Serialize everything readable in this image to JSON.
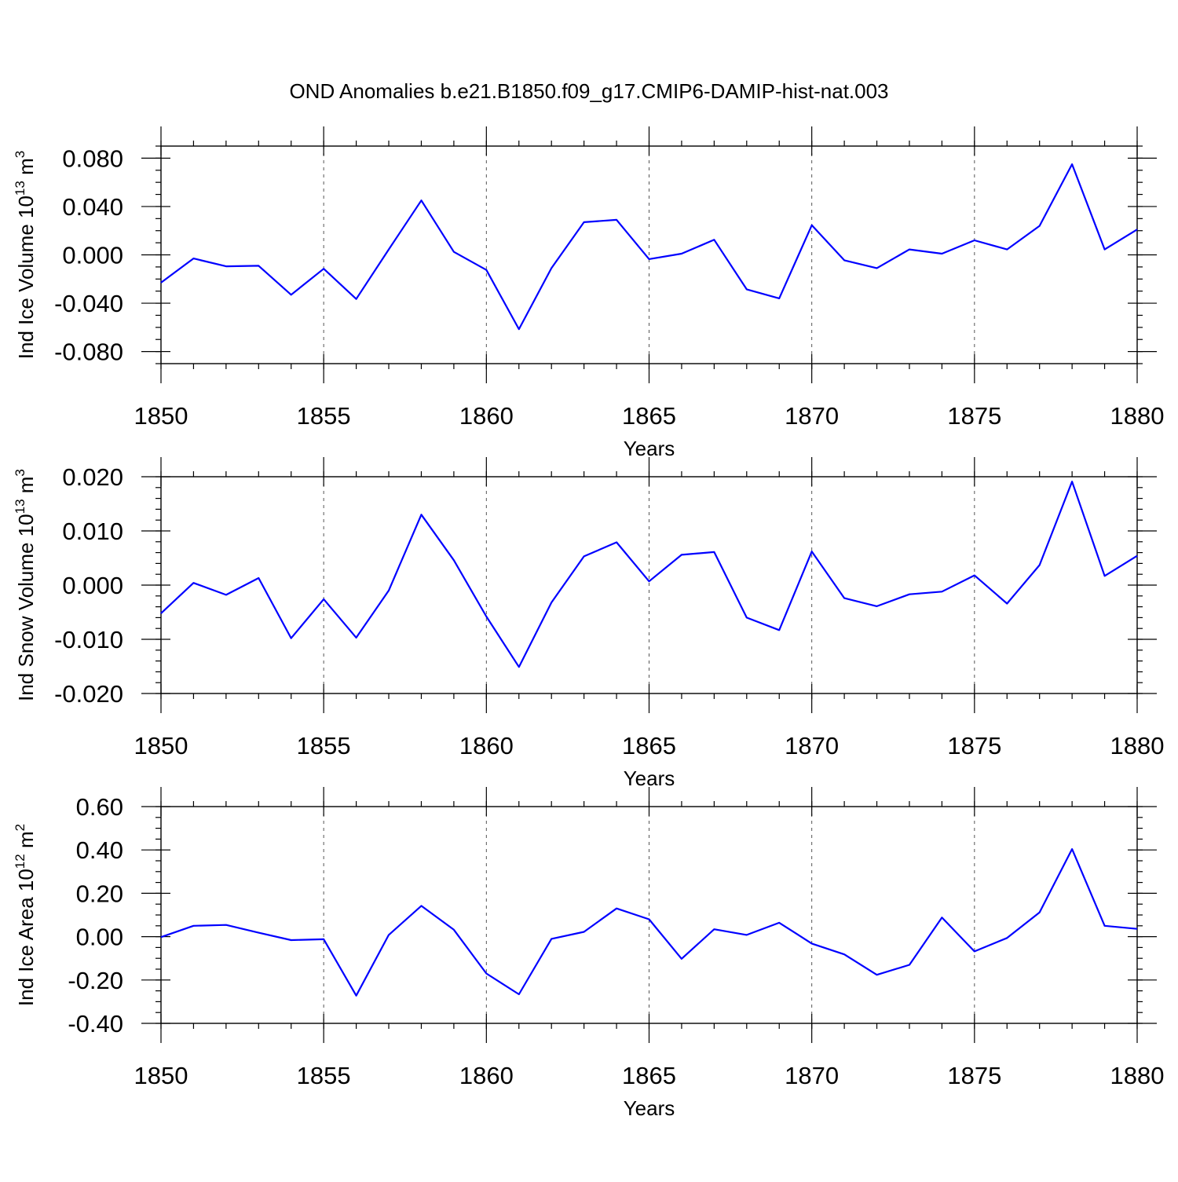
{
  "title": "OND Anomalies b.e21.B1850.f09_g17.CMIP6-DAMIP-hist-nat.003",
  "line_color": "#0000ff",
  "chart_data": [
    {
      "type": "line",
      "ylabel": "Ind Ice Volume 10",
      "ylabel_exp": "13",
      "ylabel_unit": " m",
      "ylabel_unit_exp": "3",
      "xlabel": "Years",
      "xlim": [
        1850,
        1880
      ],
      "ylim": [
        -0.09,
        0.09
      ],
      "xticks": [
        1850,
        1855,
        1860,
        1865,
        1870,
        1875,
        1880
      ],
      "xtick_labels": [
        "1850",
        "1855",
        "1860",
        "1865",
        "1870",
        "1875",
        "1880"
      ],
      "yticks": [
        -0.08,
        -0.04,
        0.0,
        0.04,
        0.08
      ],
      "ytick_labels": [
        "-0.080",
        "-0.040",
        "0.000",
        "0.040",
        "0.080"
      ],
      "yminor": [
        -0.09,
        -0.08,
        -0.07,
        -0.06,
        -0.05,
        -0.04,
        -0.03,
        -0.02,
        -0.01,
        0.0,
        0.01,
        0.02,
        0.03,
        0.04,
        0.05,
        0.06,
        0.07,
        0.08,
        0.09
      ],
      "grid_x": [
        1855,
        1860,
        1865,
        1870,
        1875
      ],
      "series": [
        {
          "name": "Ind Ice Volume",
          "x": [
            1850,
            1851,
            1852,
            1853,
            1854,
            1855,
            1856,
            1857,
            1858,
            1859,
            1860,
            1861,
            1862,
            1863,
            1864,
            1865,
            1866,
            1867,
            1868,
            1869,
            1870,
            1871,
            1872,
            1873,
            1874,
            1875,
            1876,
            1877,
            1878,
            1879,
            1880
          ],
          "values": [
            -0.023,
            -0.003,
            -0.0095,
            -0.009,
            -0.033,
            -0.0115,
            -0.0365,
            0.0045,
            0.045,
            0.0025,
            -0.0125,
            -0.0615,
            -0.011,
            0.027,
            0.029,
            -0.0035,
            0.001,
            0.0125,
            -0.0285,
            -0.036,
            0.0245,
            -0.0045,
            -0.011,
            0.0045,
            0.001,
            0.012,
            0.0045,
            0.024,
            0.075,
            0.0045,
            0.021
          ]
        }
      ]
    },
    {
      "type": "line",
      "ylabel": "Ind Snow Volume 10",
      "ylabel_exp": "13",
      "ylabel_unit": " m",
      "ylabel_unit_exp": "3",
      "xlabel": "Years",
      "xlim": [
        1850,
        1880
      ],
      "ylim": [
        -0.02,
        0.02
      ],
      "xticks": [
        1850,
        1855,
        1860,
        1865,
        1870,
        1875,
        1880
      ],
      "xtick_labels": [
        "1850",
        "1855",
        "1860",
        "1865",
        "1870",
        "1875",
        "1880"
      ],
      "yticks": [
        -0.02,
        -0.01,
        0.0,
        0.01,
        0.02
      ],
      "ytick_labels": [
        "-0.020",
        "-0.010",
        "0.000",
        "0.010",
        "0.020"
      ],
      "yminor": [
        -0.02,
        -0.018,
        -0.016,
        -0.014,
        -0.012,
        -0.01,
        -0.008,
        -0.006,
        -0.004,
        -0.002,
        0.0,
        0.002,
        0.004,
        0.006,
        0.008,
        0.01,
        0.012,
        0.014,
        0.016,
        0.018,
        0.02
      ],
      "grid_x": [
        1855,
        1860,
        1865,
        1870,
        1875
      ],
      "series": [
        {
          "name": "Ind Snow Volume",
          "x": [
            1850,
            1851,
            1852,
            1853,
            1854,
            1855,
            1856,
            1857,
            1858,
            1859,
            1860,
            1861,
            1862,
            1863,
            1864,
            1865,
            1866,
            1867,
            1868,
            1869,
            1870,
            1871,
            1872,
            1873,
            1874,
            1875,
            1876,
            1877,
            1878,
            1879,
            1880
          ],
          "values": [
            -0.0052,
            0.0004,
            -0.0018,
            0.0013,
            -0.0098,
            -0.0026,
            -0.0097,
            -0.001,
            0.013,
            0.0046,
            -0.0058,
            -0.0151,
            -0.0032,
            0.0053,
            0.0079,
            0.0007,
            0.0056,
            0.0061,
            -0.006,
            -0.0083,
            0.0062,
            -0.0024,
            -0.0039,
            -0.0017,
            -0.0012,
            0.0018,
            -0.0034,
            0.0037,
            0.0191,
            0.0017,
            0.0054
          ]
        }
      ]
    },
    {
      "type": "line",
      "ylabel": "Ind Ice Area 10",
      "ylabel_exp": "12",
      "ylabel_unit": " m",
      "ylabel_unit_exp": "2",
      "xlabel": "Years",
      "xlim": [
        1850,
        1880
      ],
      "ylim": [
        -0.4,
        0.6
      ],
      "xticks": [
        1850,
        1855,
        1860,
        1865,
        1870,
        1875,
        1880
      ],
      "xtick_labels": [
        "1850",
        "1855",
        "1860",
        "1865",
        "1870",
        "1875",
        "1880"
      ],
      "yticks": [
        -0.4,
        -0.2,
        0.0,
        0.2,
        0.4,
        0.6
      ],
      "ytick_labels": [
        "-0.40",
        "-0.20",
        "0.00",
        "0.20",
        "0.40",
        "0.60"
      ],
      "yminor": [
        -0.4,
        -0.35,
        -0.3,
        -0.25,
        -0.2,
        -0.15,
        -0.1,
        -0.05,
        0.0,
        0.05,
        0.1,
        0.15,
        0.2,
        0.25,
        0.3,
        0.35,
        0.4,
        0.45,
        0.5,
        0.55,
        0.6
      ],
      "grid_x": [
        1855,
        1860,
        1865,
        1870,
        1875
      ],
      "series": [
        {
          "name": "Ind Ice Area",
          "x": [
            1850,
            1851,
            1852,
            1853,
            1854,
            1855,
            1856,
            1857,
            1858,
            1859,
            1860,
            1861,
            1862,
            1863,
            1864,
            1865,
            1866,
            1867,
            1868,
            1869,
            1870,
            1871,
            1872,
            1873,
            1874,
            1875,
            1876,
            1877,
            1878,
            1879,
            1880
          ],
          "values": [
            -0.002,
            0.05,
            0.054,
            0.018,
            -0.016,
            -0.012,
            -0.272,
            0.008,
            0.142,
            0.032,
            -0.17,
            -0.266,
            -0.01,
            0.022,
            0.13,
            0.08,
            -0.102,
            0.034,
            0.008,
            0.064,
            -0.032,
            -0.082,
            -0.176,
            -0.13,
            0.088,
            -0.068,
            -0.006,
            0.112,
            0.404,
            0.05,
            0.036
          ]
        }
      ]
    }
  ]
}
